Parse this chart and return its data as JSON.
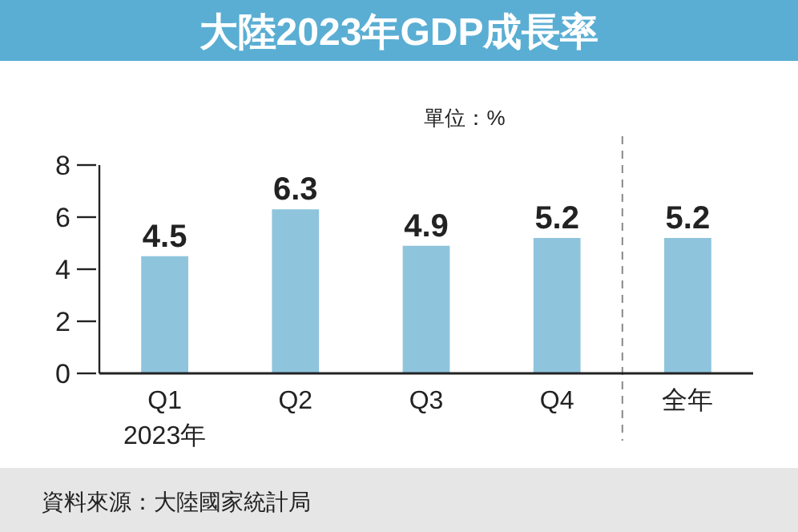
{
  "chart_data": {
    "type": "bar",
    "title": "大陸2023年GDP成長率",
    "ylabel": "單位：%",
    "categories": [
      "Q1",
      "Q2",
      "Q3",
      "Q4",
      "全年"
    ],
    "values": [
      4.5,
      6.3,
      4.9,
      5.2,
      5.2
    ],
    "color": "#8fc4dd",
    "ylim": [
      0,
      8
    ],
    "yticks": [
      0,
      2,
      4,
      6,
      8
    ],
    "grid": false,
    "data_labels": true,
    "annotations": [
      "2023年",
      "資料來源：大陸國家統計局"
    ]
  }
}
